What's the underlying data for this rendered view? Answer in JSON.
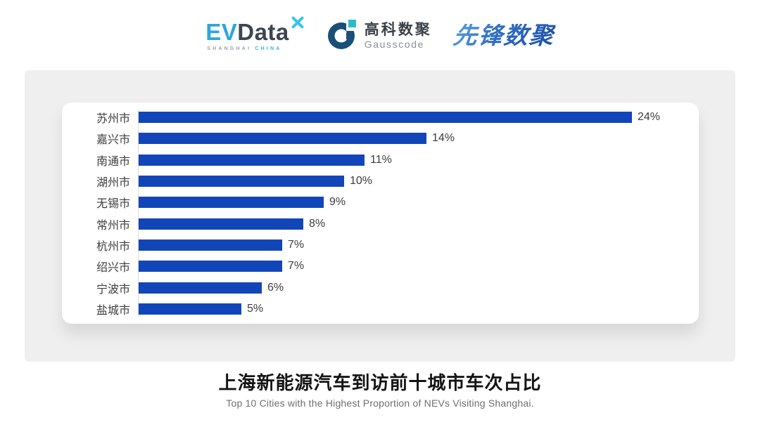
{
  "header": {
    "evdata": {
      "ev": "EV",
      "data": "Data",
      "sub_left": "SHANGHAI",
      "sub_right": "CHINA"
    },
    "gausscode": {
      "cn": "高科数聚",
      "en": "Gausscode"
    },
    "xianfeng": {
      "text": "先锋数聚"
    }
  },
  "chart_data": {
    "type": "bar",
    "orientation": "horizontal",
    "categories": [
      "苏州市",
      "嘉兴市",
      "南通市",
      "湖州市",
      "无锡市",
      "常州市",
      "杭州市",
      "绍兴市",
      "宁波市",
      "盐城市"
    ],
    "values": [
      24,
      14,
      11,
      10,
      9,
      8,
      7,
      7,
      6,
      5
    ],
    "value_suffix": "%",
    "data_labels": true,
    "legend": false,
    "grid": false,
    "xlim": [
      0,
      25
    ],
    "bar_color": "#1246B8",
    "title": "上海新能源汽车到访前十城市车次占比",
    "subtitle": "Top 10 Cities with the Highest Proportion of  NEVs Visiting Shanghai."
  },
  "footer": {
    "title": "上海新能源汽车到访前十城市车次占比",
    "subtitle": "Top 10 Cities with the Highest Proportion of  NEVs Visiting Shanghai."
  },
  "colors": {
    "bar": "#1246B8",
    "panel_bg": "#efefef",
    "card_bg": "#ffffff",
    "ev_blue": "#2BA6DF",
    "ev_dark": "#3C4553",
    "gauss_navy": "#1A4F78",
    "gauss_cyan": "#2BBCCB",
    "xianfeng_blue": "#2E6CC4"
  }
}
